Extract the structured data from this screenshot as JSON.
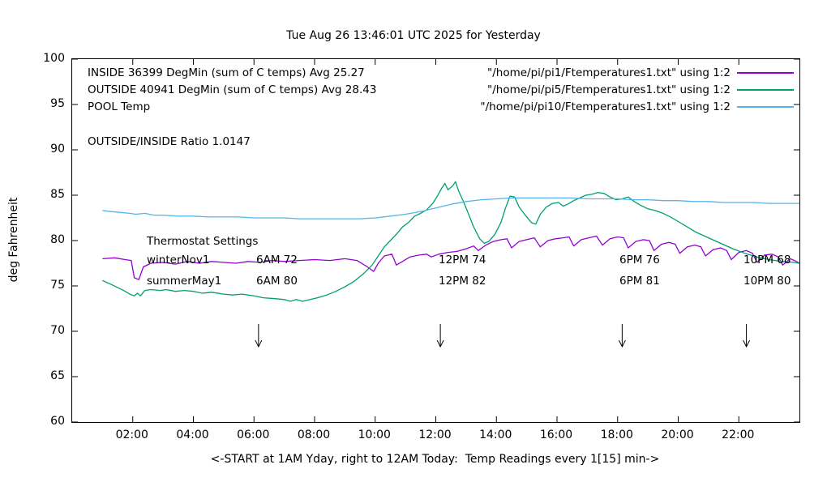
{
  "title": "Tue Aug 26 13:46:01 UTC 2025 for Yesterday",
  "ylabel": "deg Fahrenheit",
  "xlabel": "<-START at 1AM Yday, right to 12AM Today:  Temp Readings every 1[15] min->",
  "ratio_text": "OUTSIDE/INSIDE Ratio 1.0147",
  "legend": {
    "rows": [
      {
        "label": "INSIDE 36399 DegMin (sum of C temps) Avg 25.27",
        "file": "\"/home/pi/pi1/Ftemperatures1.txt\" using 1:2",
        "color": "#9400d3"
      },
      {
        "label": "OUTSIDE 40941 DegMin (sum of C temps) Avg 28.43",
        "file": "\"/home/pi/pi5/Ftemperatures1.txt\" using 1:2",
        "color": "#009e73"
      },
      {
        "label": "POOL Temp",
        "file": "\"/home/pi/pi10/Ftemperatures1.txt\" using 1:2",
        "color": "#56b4e9"
      }
    ]
  },
  "thermostat": {
    "heading": "Thermostat Settings",
    "rows": [
      {
        "season": "winterNov1",
        "c1": "6AM 72",
        "c2": "12PM 74",
        "c3": "6PM 76",
        "c4": "10PM 68"
      },
      {
        "season": "summerMay1",
        "c1": "6AM 80",
        "c2": "12PM 82",
        "c3": "6PM 81",
        "c4": "10PM 80"
      }
    ]
  },
  "chart_data": {
    "type": "line",
    "title": "Tue Aug 26 13:46:01 UTC 2025 for Yesterday",
    "xlabel": "<-START at 1AM Yday, right to 12AM Today:  Temp Readings every 1[15] min->",
    "ylabel": "deg Fahrenheit",
    "grid": false,
    "legend_position": "top-inside",
    "x_axis": {
      "min": 0,
      "max": 24,
      "ticks": [
        {
          "h": 2,
          "label": "02:00"
        },
        {
          "h": 4,
          "label": "04:00"
        },
        {
          "h": 6,
          "label": "06:00"
        },
        {
          "h": 8,
          "label": "08:00"
        },
        {
          "h": 10,
          "label": "10:00"
        },
        {
          "h": 12,
          "label": "12:00"
        },
        {
          "h": 14,
          "label": "14:00"
        },
        {
          "h": 16,
          "label": "16:00"
        },
        {
          "h": 18,
          "label": "18:00"
        },
        {
          "h": 20,
          "label": "20:00"
        },
        {
          "h": 22,
          "label": "22:00"
        }
      ]
    },
    "y_axis": {
      "min": 60,
      "max": 100,
      "ticks": [
        60,
        65,
        70,
        75,
        80,
        85,
        90,
        95,
        100
      ]
    },
    "series": [
      {
        "name": "INSIDE",
        "color": "#9400d3",
        "points": [
          [
            1,
            78
          ],
          [
            1.4,
            78.1
          ],
          [
            1.75,
            77.9
          ],
          [
            1.95,
            77.8
          ],
          [
            2.05,
            75.9
          ],
          [
            2.2,
            75.7
          ],
          [
            2.35,
            77.1
          ],
          [
            2.6,
            77.5
          ],
          [
            3,
            77.6
          ],
          [
            3.4,
            77.4
          ],
          [
            3.8,
            77.7
          ],
          [
            4.2,
            77.5
          ],
          [
            4.6,
            77.7
          ],
          [
            5,
            77.6
          ],
          [
            5.4,
            77.5
          ],
          [
            5.8,
            77.7
          ],
          [
            6.2,
            77.6
          ],
          [
            6.6,
            77.8
          ],
          [
            7,
            77.7
          ],
          [
            7.5,
            77.8
          ],
          [
            8,
            77.9
          ],
          [
            8.5,
            77.8
          ],
          [
            9,
            78
          ],
          [
            9.4,
            77.8
          ],
          [
            9.7,
            77.2
          ],
          [
            9.95,
            76.6
          ],
          [
            10.1,
            77.5
          ],
          [
            10.3,
            78.3
          ],
          [
            10.55,
            78.5
          ],
          [
            10.7,
            77.3
          ],
          [
            10.9,
            77.7
          ],
          [
            11.15,
            78.2
          ],
          [
            11.45,
            78.4
          ],
          [
            11.7,
            78.5
          ],
          [
            11.85,
            78.2
          ],
          [
            12.1,
            78.5
          ],
          [
            12.4,
            78.7
          ],
          [
            12.7,
            78.8
          ],
          [
            13,
            79.1
          ],
          [
            13.25,
            79.4
          ],
          [
            13.4,
            78.9
          ],
          [
            13.65,
            79.5
          ],
          [
            13.9,
            79.9
          ],
          [
            14.15,
            80.1
          ],
          [
            14.35,
            80.2
          ],
          [
            14.5,
            79.2
          ],
          [
            14.75,
            79.9
          ],
          [
            15,
            80.1
          ],
          [
            15.25,
            80.3
          ],
          [
            15.45,
            79.3
          ],
          [
            15.7,
            80
          ],
          [
            15.95,
            80.2
          ],
          [
            16.2,
            80.3
          ],
          [
            16.4,
            80.4
          ],
          [
            16.55,
            79.4
          ],
          [
            16.8,
            80.1
          ],
          [
            17.05,
            80.3
          ],
          [
            17.3,
            80.5
          ],
          [
            17.5,
            79.5
          ],
          [
            17.75,
            80.2
          ],
          [
            18,
            80.4
          ],
          [
            18.2,
            80.3
          ],
          [
            18.35,
            79.2
          ],
          [
            18.6,
            79.9
          ],
          [
            18.85,
            80.1
          ],
          [
            19.05,
            80
          ],
          [
            19.2,
            78.9
          ],
          [
            19.45,
            79.6
          ],
          [
            19.7,
            79.8
          ],
          [
            19.9,
            79.6
          ],
          [
            20.05,
            78.6
          ],
          [
            20.3,
            79.3
          ],
          [
            20.55,
            79.5
          ],
          [
            20.75,
            79.3
          ],
          [
            20.9,
            78.3
          ],
          [
            21.15,
            79
          ],
          [
            21.4,
            79.2
          ],
          [
            21.6,
            78.9
          ],
          [
            21.75,
            77.9
          ],
          [
            22,
            78.7
          ],
          [
            22.25,
            78.9
          ],
          [
            22.45,
            78.6
          ],
          [
            22.6,
            77.6
          ],
          [
            22.85,
            78.4
          ],
          [
            23.1,
            78.5
          ],
          [
            23.3,
            78.2
          ],
          [
            23.45,
            77.3
          ],
          [
            23.7,
            78
          ],
          [
            23.9,
            77.7
          ],
          [
            24,
            77.5
          ]
        ]
      },
      {
        "name": "OUTSIDE",
        "color": "#009e73",
        "points": [
          [
            1,
            75.6
          ],
          [
            1.2,
            75.3
          ],
          [
            1.45,
            74.9
          ],
          [
            1.7,
            74.5
          ],
          [
            1.9,
            74.1
          ],
          [
            2.05,
            73.9
          ],
          [
            2.15,
            74.2
          ],
          [
            2.25,
            73.9
          ],
          [
            2.4,
            74.5
          ],
          [
            2.6,
            74.6
          ],
          [
            2.9,
            74.5
          ],
          [
            3.1,
            74.6
          ],
          [
            3.4,
            74.4
          ],
          [
            3.7,
            74.5
          ],
          [
            4,
            74.4
          ],
          [
            4.3,
            74.2
          ],
          [
            4.6,
            74.3
          ],
          [
            5,
            74.1
          ],
          [
            5.3,
            74
          ],
          [
            5.6,
            74.1
          ],
          [
            6,
            73.9
          ],
          [
            6.3,
            73.7
          ],
          [
            6.7,
            73.6
          ],
          [
            7,
            73.5
          ],
          [
            7.2,
            73.3
          ],
          [
            7.4,
            73.5
          ],
          [
            7.6,
            73.3
          ],
          [
            7.85,
            73.5
          ],
          [
            8.1,
            73.7
          ],
          [
            8.4,
            74
          ],
          [
            8.7,
            74.4
          ],
          [
            9,
            74.9
          ],
          [
            9.3,
            75.5
          ],
          [
            9.6,
            76.3
          ],
          [
            9.9,
            77.3
          ],
          [
            10.1,
            78.3
          ],
          [
            10.3,
            79.3
          ],
          [
            10.5,
            80
          ],
          [
            10.7,
            80.7
          ],
          [
            10.9,
            81.5
          ],
          [
            11.1,
            82
          ],
          [
            11.3,
            82.7
          ],
          [
            11.5,
            83
          ],
          [
            11.7,
            83.4
          ],
          [
            11.9,
            84.1
          ],
          [
            12.05,
            84.9
          ],
          [
            12.2,
            85.8
          ],
          [
            12.3,
            86.3
          ],
          [
            12.4,
            85.6
          ],
          [
            12.55,
            86
          ],
          [
            12.65,
            86.5
          ],
          [
            12.75,
            85.5
          ],
          [
            12.9,
            84.4
          ],
          [
            13.05,
            83.2
          ],
          [
            13.25,
            81.5
          ],
          [
            13.45,
            80.2
          ],
          [
            13.6,
            79.7
          ],
          [
            13.75,
            79.9
          ],
          [
            13.95,
            80.7
          ],
          [
            14.15,
            82
          ],
          [
            14.3,
            83.6
          ],
          [
            14.45,
            84.9
          ],
          [
            14.6,
            84.8
          ],
          [
            14.75,
            83.7
          ],
          [
            14.95,
            82.8
          ],
          [
            15.15,
            82
          ],
          [
            15.3,
            81.8
          ],
          [
            15.45,
            82.9
          ],
          [
            15.65,
            83.7
          ],
          [
            15.85,
            84.1
          ],
          [
            16.05,
            84.2
          ],
          [
            16.2,
            83.8
          ],
          [
            16.35,
            84
          ],
          [
            16.55,
            84.4
          ],
          [
            16.75,
            84.7
          ],
          [
            16.95,
            85
          ],
          [
            17.15,
            85.1
          ],
          [
            17.35,
            85.3
          ],
          [
            17.55,
            85.2
          ],
          [
            17.75,
            84.8
          ],
          [
            17.95,
            84.5
          ],
          [
            18.15,
            84.6
          ],
          [
            18.35,
            84.8
          ],
          [
            18.55,
            84.3
          ],
          [
            18.75,
            83.9
          ],
          [
            19,
            83.5
          ],
          [
            19.25,
            83.3
          ],
          [
            19.5,
            83
          ],
          [
            19.75,
            82.6
          ],
          [
            20,
            82.1
          ],
          [
            20.3,
            81.5
          ],
          [
            20.6,
            80.9
          ],
          [
            21,
            80.3
          ],
          [
            21.4,
            79.7
          ],
          [
            21.8,
            79.1
          ],
          [
            22.2,
            78.6
          ],
          [
            22.6,
            78.2
          ],
          [
            23,
            77.9
          ],
          [
            23.4,
            77.7
          ],
          [
            23.8,
            77.6
          ],
          [
            24,
            77.5
          ]
        ]
      },
      {
        "name": "POOL",
        "color": "#56b4e9",
        "points": [
          [
            1,
            83.3
          ],
          [
            1.3,
            83.2
          ],
          [
            1.6,
            83.1
          ],
          [
            1.9,
            83
          ],
          [
            2.1,
            82.9
          ],
          [
            2.4,
            83
          ],
          [
            2.7,
            82.8
          ],
          [
            3,
            82.8
          ],
          [
            3.5,
            82.7
          ],
          [
            4,
            82.7
          ],
          [
            4.5,
            82.6
          ],
          [
            5,
            82.6
          ],
          [
            5.5,
            82.6
          ],
          [
            6,
            82.5
          ],
          [
            6.5,
            82.5
          ],
          [
            7,
            82.5
          ],
          [
            7.5,
            82.4
          ],
          [
            8,
            82.4
          ],
          [
            8.5,
            82.4
          ],
          [
            9,
            82.4
          ],
          [
            9.5,
            82.4
          ],
          [
            10,
            82.5
          ],
          [
            10.5,
            82.7
          ],
          [
            11,
            82.9
          ],
          [
            11.5,
            83.2
          ],
          [
            12,
            83.6
          ],
          [
            12.5,
            84
          ],
          [
            13,
            84.3
          ],
          [
            13.5,
            84.5
          ],
          [
            14,
            84.6
          ],
          [
            14.5,
            84.7
          ],
          [
            15,
            84.7
          ],
          [
            15.5,
            84.7
          ],
          [
            16,
            84.7
          ],
          [
            16.5,
            84.7
          ],
          [
            17,
            84.6
          ],
          [
            17.5,
            84.6
          ],
          [
            18,
            84.6
          ],
          [
            18.5,
            84.5
          ],
          [
            19,
            84.5
          ],
          [
            19.5,
            84.4
          ],
          [
            20,
            84.4
          ],
          [
            20.5,
            84.3
          ],
          [
            21,
            84.3
          ],
          [
            21.5,
            84.2
          ],
          [
            22,
            84.2
          ],
          [
            22.5,
            84.2
          ],
          [
            23,
            84.1
          ],
          [
            23.5,
            84.1
          ],
          [
            24,
            84.1
          ]
        ]
      }
    ],
    "arrows": [
      {
        "x": 6.15,
        "y_from": 70.8,
        "y_to": 68.3
      },
      {
        "x": 12.15,
        "y_from": 70.8,
        "y_to": 68.3
      },
      {
        "x": 18.15,
        "y_from": 70.8,
        "y_to": 68.3
      },
      {
        "x": 22.25,
        "y_from": 70.8,
        "y_to": 68.3
      }
    ]
  }
}
